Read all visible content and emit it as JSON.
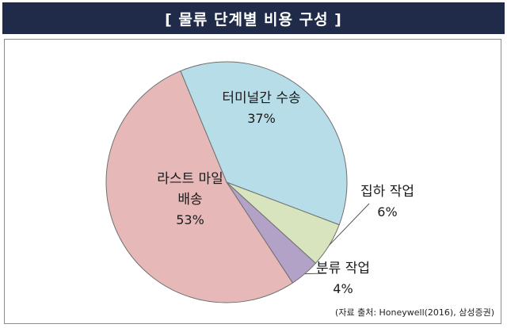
{
  "chart_data": {
    "type": "pie",
    "title": "[ 물류 단계별 비용 구성 ]",
    "slices": [
      {
        "label": "터미널간 수송",
        "value": 37,
        "value_label": "37%",
        "color": "#b7dde8"
      },
      {
        "label": "집하 작업",
        "value": 6,
        "value_label": "6%",
        "color": "#d7e4bd"
      },
      {
        "label": "분류 작업",
        "value": 4,
        "value_label": "4%",
        "color": "#b3a2c7"
      },
      {
        "label": "라스트 마일 배송",
        "label_lines": [
          "라스트 마일",
          "배송"
        ],
        "value": 53,
        "value_label": "53%",
        "color": "#e6b9b8"
      }
    ],
    "source": "(자료 출처: Honeywell(2016), 삼성증권)"
  }
}
